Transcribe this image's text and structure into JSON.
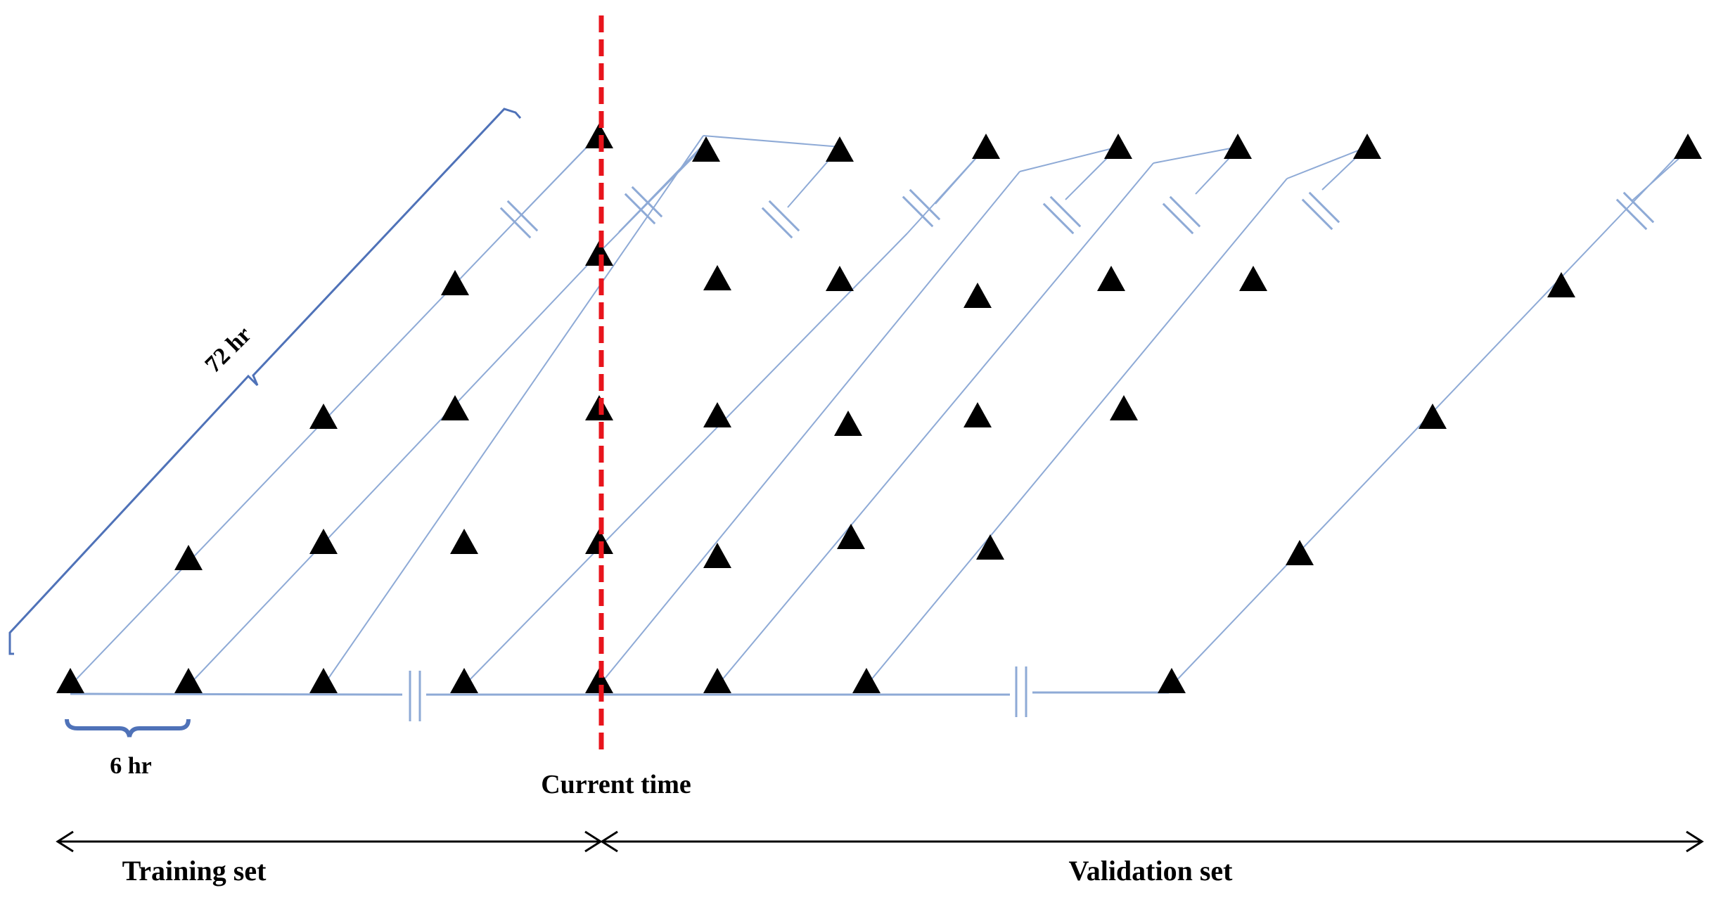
{
  "labels": {
    "span_72": "72 hr",
    "span_6": "6 hr",
    "current_time": "Current time",
    "training_set": "Training set",
    "validation_set": "Validation set"
  },
  "colors": {
    "line": "#8eaad6",
    "brace": "#4f72b8",
    "current_time_line": "#e8141c",
    "marker": "#000000",
    "arrow": "#000000"
  },
  "icons": {
    "marker": "triangle-marker-icon",
    "axis_break": "axis-break-icon",
    "arrowhead": "arrowhead-icon"
  }
}
